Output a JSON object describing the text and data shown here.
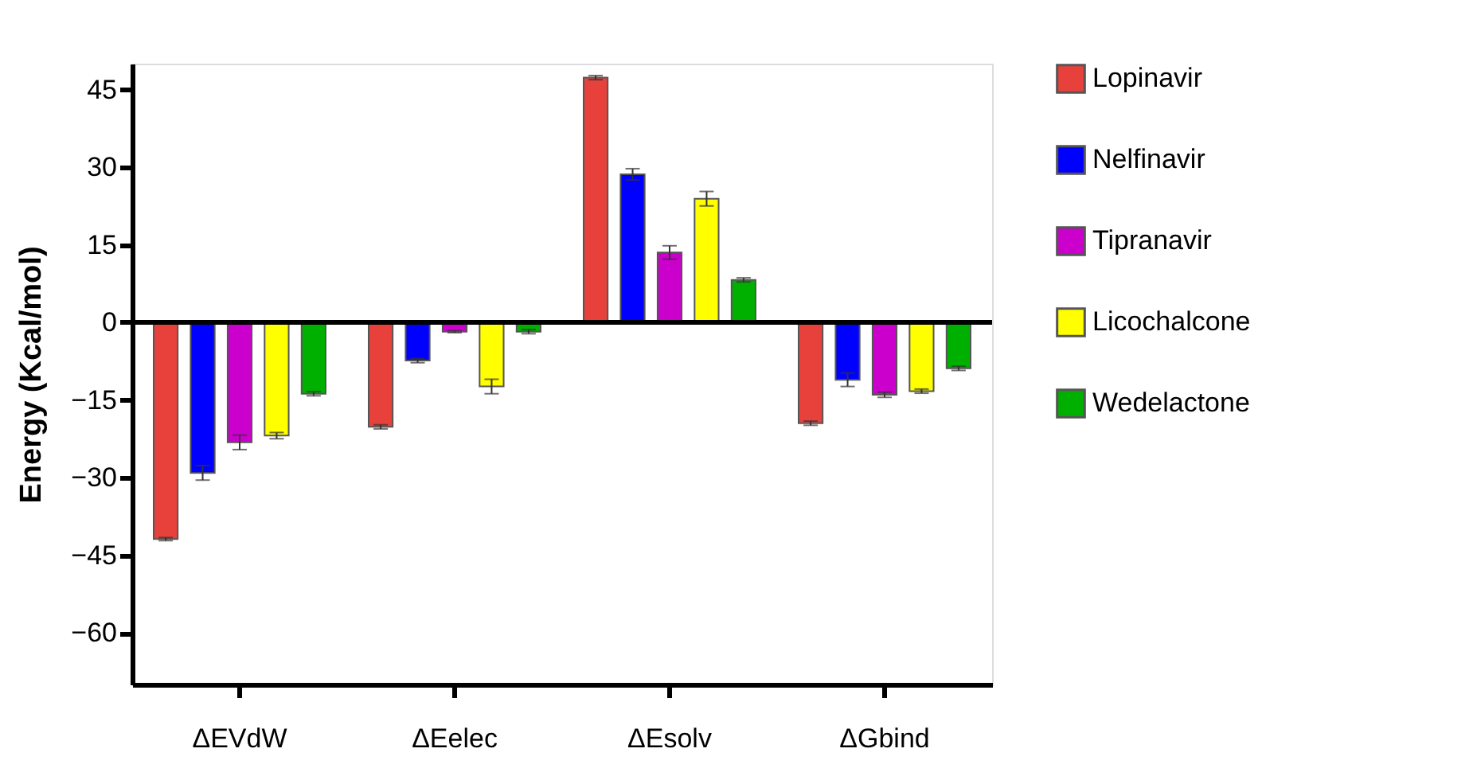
{
  "chart_data": {
    "type": "bar",
    "ylabel": "Energy (Kcal/mol)",
    "categories": [
      "ΔEVdW",
      "ΔEelec",
      "ΔEsolv",
      "ΔGbind"
    ],
    "series": [
      {
        "name": "Lopinavir",
        "color": "#e8413c",
        "values": [
          -41.9,
          -20.2,
          47.3,
          -19.5
        ],
        "errors": [
          0.3,
          0.4,
          0.4,
          0.4
        ]
      },
      {
        "name": "Nelfinavir",
        "color": "#0000ff",
        "values": [
          -29.1,
          -7.4,
          28.6,
          -11.1
        ],
        "errors": [
          1.4,
          0.4,
          1.1,
          1.3
        ]
      },
      {
        "name": "Tipranavir",
        "color": "#cc00cc",
        "values": [
          -23.2,
          -1.8,
          13.5,
          -14.0
        ],
        "errors": [
          1.4,
          0.2,
          1.3,
          0.5
        ]
      },
      {
        "name": "Licochalcone",
        "color": "#ffff00",
        "values": [
          -21.9,
          -12.4,
          23.9,
          -13.3
        ],
        "errors": [
          0.6,
          1.4,
          1.4,
          0.4
        ]
      },
      {
        "name": "Wedelactone",
        "color": "#00b000",
        "values": [
          -13.8,
          -1.8,
          8.2,
          -8.9
        ],
        "errors": [
          0.4,
          0.4,
          0.4,
          0.4
        ]
      }
    ],
    "ylim": [
      -70,
      50
    ],
    "yticks": [
      -60,
      -45,
      -30,
      -15,
      0,
      15,
      30,
      45
    ],
    "ref_lines": [
      {
        "axis": "y",
        "value": 0,
        "color": "#000000"
      }
    ],
    "grid": false,
    "legend": "right"
  }
}
